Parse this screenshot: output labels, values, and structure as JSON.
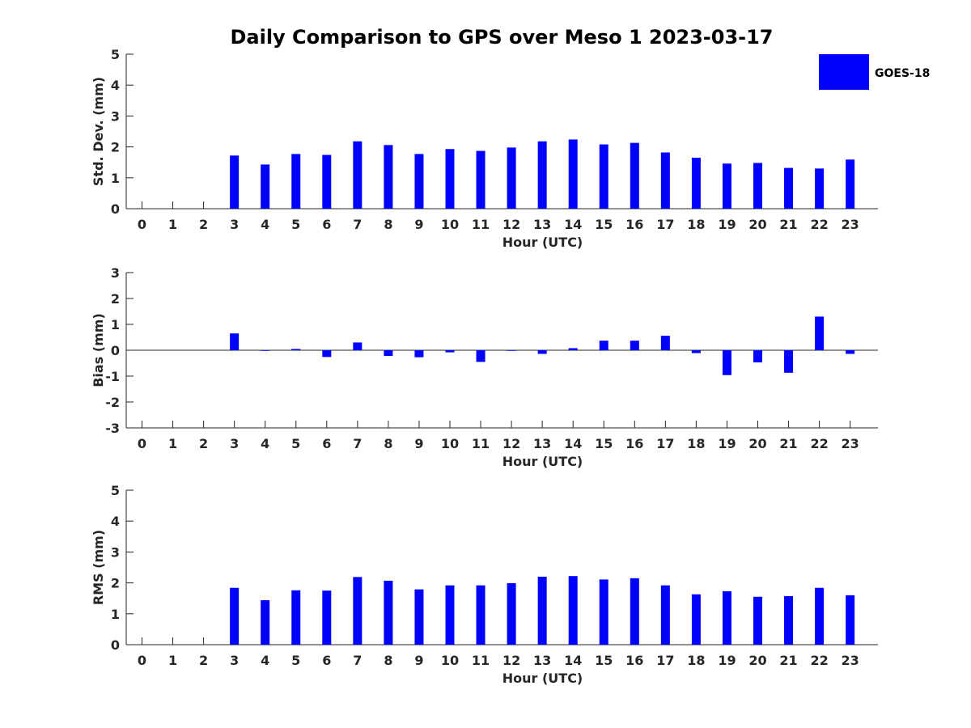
{
  "chart_data": {
    "title": "Daily Comparison to GPS over Meso 1 2023-03-17",
    "legend": {
      "label": "GOES-18",
      "color": "#0000ff",
      "position": "top-right"
    },
    "panels": [
      {
        "type": "bar",
        "name": "std-dev",
        "ylabel": "Std. Dev. (mm)",
        "xlabel": "Hour (UTC)",
        "ylim": [
          0,
          5
        ],
        "yticks": [
          0,
          1,
          2,
          3,
          4,
          5
        ],
        "categories": [
          0,
          1,
          2,
          3,
          4,
          5,
          6,
          7,
          8,
          9,
          10,
          11,
          12,
          13,
          14,
          15,
          16,
          17,
          18,
          19,
          20,
          21,
          22,
          23
        ],
        "values": [
          null,
          null,
          null,
          1.72,
          1.43,
          1.77,
          1.74,
          2.18,
          2.06,
          1.77,
          1.93,
          1.87,
          1.98,
          2.18,
          2.24,
          2.08,
          2.13,
          1.82,
          1.65,
          1.46,
          1.48,
          1.32,
          1.3,
          1.59
        ]
      },
      {
        "type": "bar",
        "name": "bias",
        "ylabel": "Bias (mm)",
        "xlabel": "Hour (UTC)",
        "ylim": [
          -3,
          3
        ],
        "yticks": [
          -3,
          -2,
          -1,
          0,
          1,
          2,
          3
        ],
        "categories": [
          0,
          1,
          2,
          3,
          4,
          5,
          6,
          7,
          8,
          9,
          10,
          11,
          12,
          13,
          14,
          15,
          16,
          17,
          18,
          19,
          20,
          21,
          22,
          23
        ],
        "values": [
          null,
          null,
          null,
          0.65,
          0.0,
          0.05,
          -0.26,
          0.3,
          -0.22,
          -0.27,
          -0.08,
          -0.45,
          -0.02,
          -0.14,
          0.08,
          0.37,
          0.37,
          0.56,
          -0.11,
          -0.96,
          -0.47,
          -0.87,
          1.3,
          -0.14
        ]
      },
      {
        "type": "bar",
        "name": "rms",
        "ylabel": "RMS (mm)",
        "xlabel": "Hour (UTC)",
        "ylim": [
          0,
          5
        ],
        "yticks": [
          0,
          1,
          2,
          3,
          4,
          5
        ],
        "categories": [
          0,
          1,
          2,
          3,
          4,
          5,
          6,
          7,
          8,
          9,
          10,
          11,
          12,
          13,
          14,
          15,
          16,
          17,
          18,
          19,
          20,
          21,
          22,
          23
        ],
        "values": [
          null,
          null,
          null,
          1.84,
          1.44,
          1.76,
          1.75,
          2.19,
          2.07,
          1.79,
          1.92,
          1.92,
          1.99,
          2.2,
          2.22,
          2.11,
          2.15,
          1.92,
          1.63,
          1.73,
          1.55,
          1.57,
          1.84,
          1.6
        ]
      }
    ]
  }
}
